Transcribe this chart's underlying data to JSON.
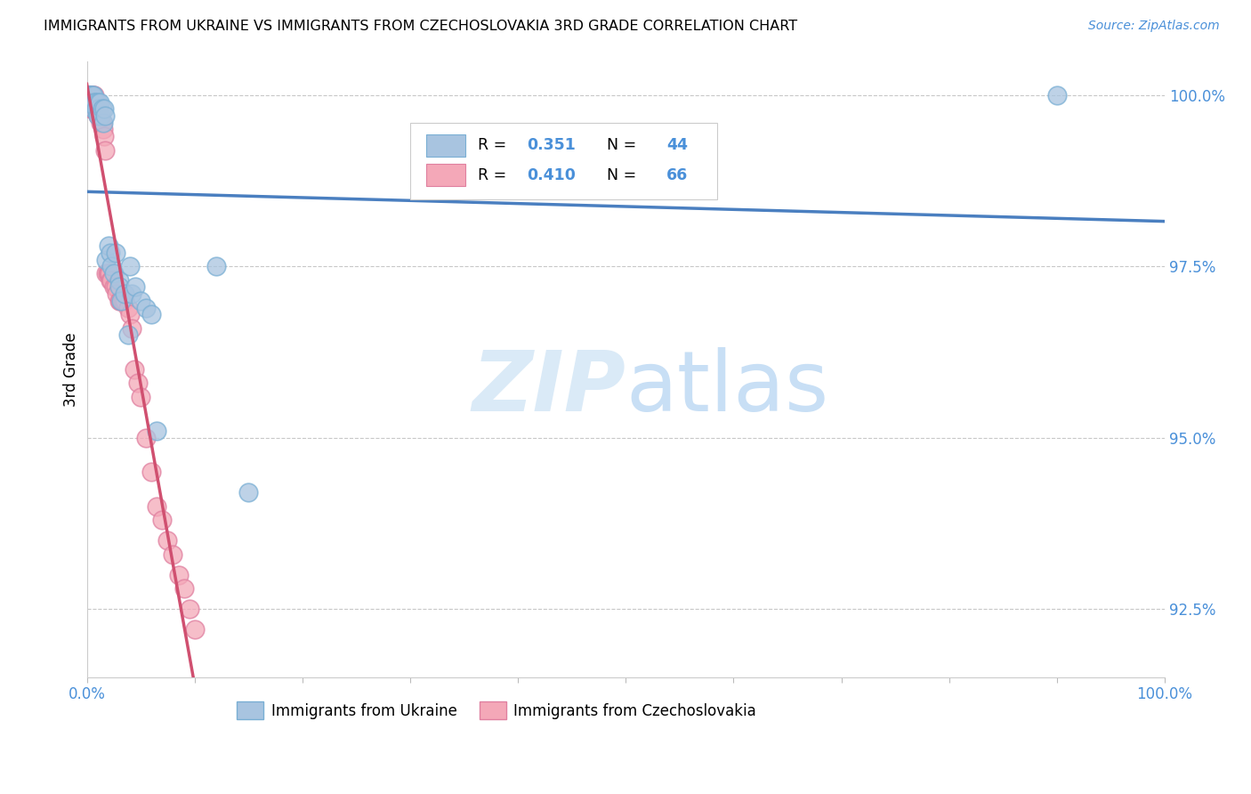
{
  "title": "IMMIGRANTS FROM UKRAINE VS IMMIGRANTS FROM CZECHOSLOVAKIA 3RD GRADE CORRELATION CHART",
  "source": "Source: ZipAtlas.com",
  "ylabel": "3rd Grade",
  "xlim": [
    0.0,
    1.0
  ],
  "ylim": [
    0.915,
    1.005
  ],
  "yticks": [
    0.925,
    0.95,
    0.975,
    1.0
  ],
  "ytick_labels": [
    "92.5%",
    "95.0%",
    "97.5%",
    "100.0%"
  ],
  "xtick_labels_left": "0.0%",
  "xtick_labels_right": "100.0%",
  "ukraine_color": "#a8c4e0",
  "ukraine_edge_color": "#7aafd4",
  "czecho_color": "#f4a8b8",
  "czecho_edge_color": "#e080a0",
  "ukraine_R": 0.351,
  "ukraine_N": 44,
  "czecho_R": 0.41,
  "czecho_N": 66,
  "ukraine_line_color": "#4a7fc0",
  "czecho_line_color": "#d05070",
  "r_color": "#4a90d9",
  "watermark_color": "#daeaf7",
  "ukraine_x": [
    0.0,
    0.0,
    0.0,
    0.003,
    0.003,
    0.003,
    0.004,
    0.005,
    0.005,
    0.006,
    0.006,
    0.007,
    0.008,
    0.009,
    0.01,
    0.01,
    0.011,
    0.012,
    0.013,
    0.014,
    0.015,
    0.016,
    0.017,
    0.018,
    0.02,
    0.022,
    0.023,
    0.025,
    0.027,
    0.03,
    0.03,
    0.032,
    0.035,
    0.038,
    0.04,
    0.042,
    0.045,
    0.05,
    0.055,
    0.06,
    0.065,
    0.12,
    0.15,
    0.9
  ],
  "ukraine_y": [
    1.0,
    1.0,
    1.0,
    1.0,
    1.0,
    0.999,
    1.0,
    1.0,
    0.999,
    1.0,
    0.998,
    0.999,
    0.999,
    0.998,
    0.999,
    0.997,
    0.998,
    0.999,
    0.997,
    0.998,
    0.996,
    0.998,
    0.997,
    0.976,
    0.978,
    0.977,
    0.975,
    0.974,
    0.977,
    0.973,
    0.972,
    0.97,
    0.971,
    0.965,
    0.975,
    0.971,
    0.972,
    0.97,
    0.969,
    0.968,
    0.951,
    0.975,
    0.942,
    1.0
  ],
  "czecho_x": [
    0.0,
    0.0,
    0.0,
    0.0,
    0.0,
    0.001,
    0.001,
    0.002,
    0.002,
    0.002,
    0.003,
    0.003,
    0.003,
    0.004,
    0.004,
    0.004,
    0.005,
    0.005,
    0.005,
    0.006,
    0.006,
    0.007,
    0.007,
    0.008,
    0.008,
    0.009,
    0.009,
    0.01,
    0.01,
    0.011,
    0.011,
    0.012,
    0.013,
    0.014,
    0.015,
    0.016,
    0.017,
    0.018,
    0.019,
    0.02,
    0.021,
    0.022,
    0.023,
    0.025,
    0.027,
    0.028,
    0.03,
    0.031,
    0.033,
    0.035,
    0.038,
    0.04,
    0.042,
    0.044,
    0.047,
    0.05,
    0.055,
    0.06,
    0.065,
    0.07,
    0.075,
    0.08,
    0.085,
    0.09,
    0.095,
    0.1
  ],
  "czecho_y": [
    1.0,
    1.0,
    1.0,
    1.0,
    1.0,
    1.0,
    1.0,
    1.0,
    1.0,
    0.999,
    1.0,
    1.0,
    0.999,
    1.0,
    0.999,
    0.998,
    1.0,
    0.999,
    0.998,
    1.0,
    0.999,
    1.0,
    0.999,
    0.999,
    0.998,
    0.999,
    0.998,
    0.998,
    0.997,
    0.998,
    0.997,
    0.997,
    0.996,
    0.996,
    0.995,
    0.994,
    0.992,
    0.974,
    0.974,
    0.974,
    0.974,
    0.973,
    0.973,
    0.972,
    0.972,
    0.971,
    0.97,
    0.97,
    0.97,
    0.97,
    0.969,
    0.968,
    0.966,
    0.96,
    0.958,
    0.956,
    0.95,
    0.945,
    0.94,
    0.938,
    0.935,
    0.933,
    0.93,
    0.928,
    0.925,
    0.922
  ]
}
